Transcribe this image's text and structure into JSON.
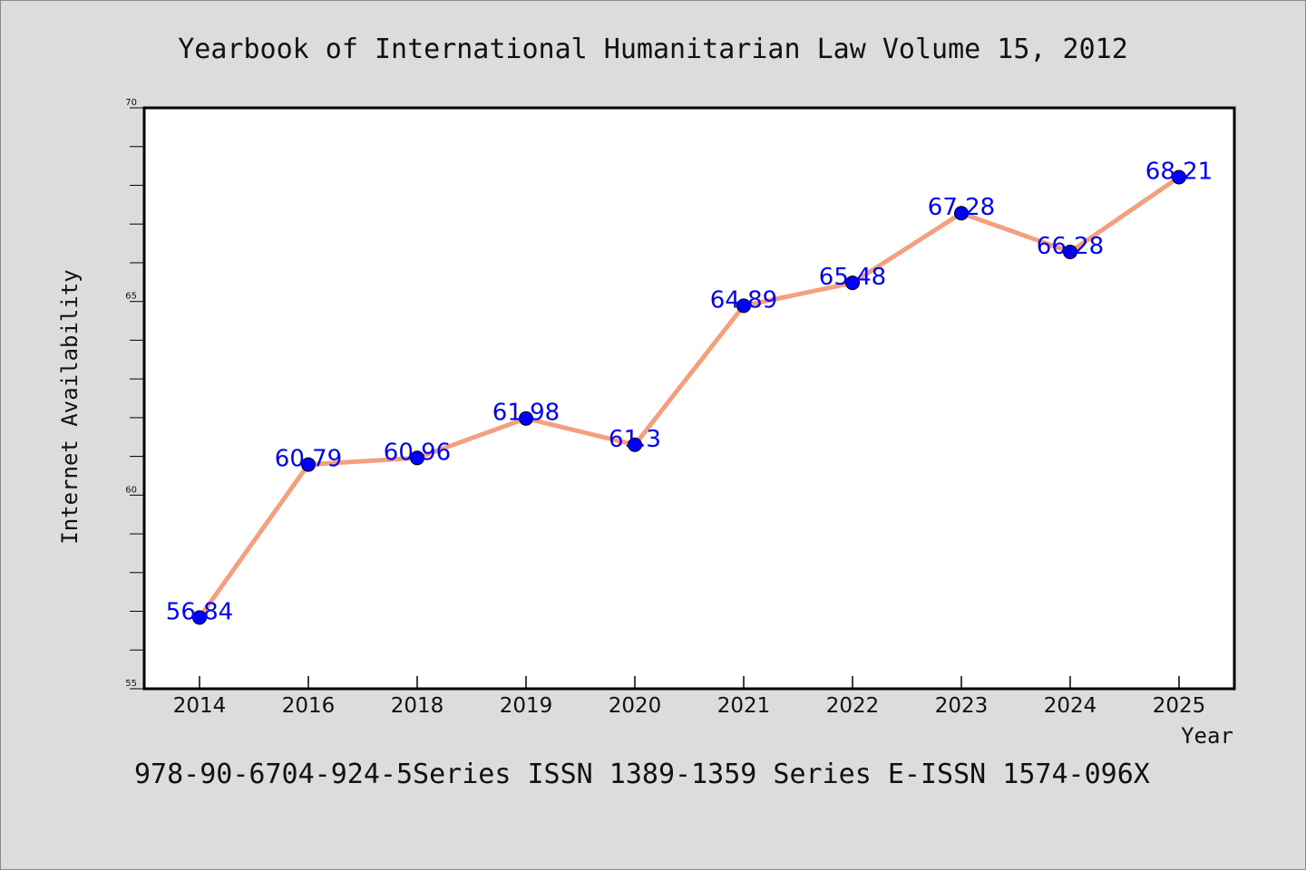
{
  "chart_data": {
    "type": "line",
    "title": "Yearbook of International Humanitarian Law Volume 15, 2012",
    "xlabel": "Year",
    "ylabel": "Internet Availability",
    "footer": "978-90-6704-924-5Series ISSN 1389-1359 Series E-ISSN 1574-096X",
    "categories": [
      "2014",
      "2016",
      "2018",
      "2019",
      "2020",
      "2021",
      "2022",
      "2023",
      "2024",
      "2025"
    ],
    "values": [
      56.84,
      60.79,
      60.96,
      61.98,
      61.3,
      64.89,
      65.48,
      67.28,
      66.28,
      68.21
    ],
    "labels": [
      "56.84",
      "60.79",
      "60.96",
      "61.98",
      "61.3",
      "64.89",
      "65.48",
      "67.28",
      "66.28",
      "68.21"
    ],
    "ylim": [
      55,
      70
    ],
    "yticks": [
      "55",
      "60",
      "65",
      "70"
    ],
    "grid": false,
    "colors": {
      "line": "#f4a07f",
      "marker": "#0000ff",
      "data_label": "#0000ff",
      "background": "#dcdcdc",
      "plot_background": "#ffffff"
    }
  }
}
